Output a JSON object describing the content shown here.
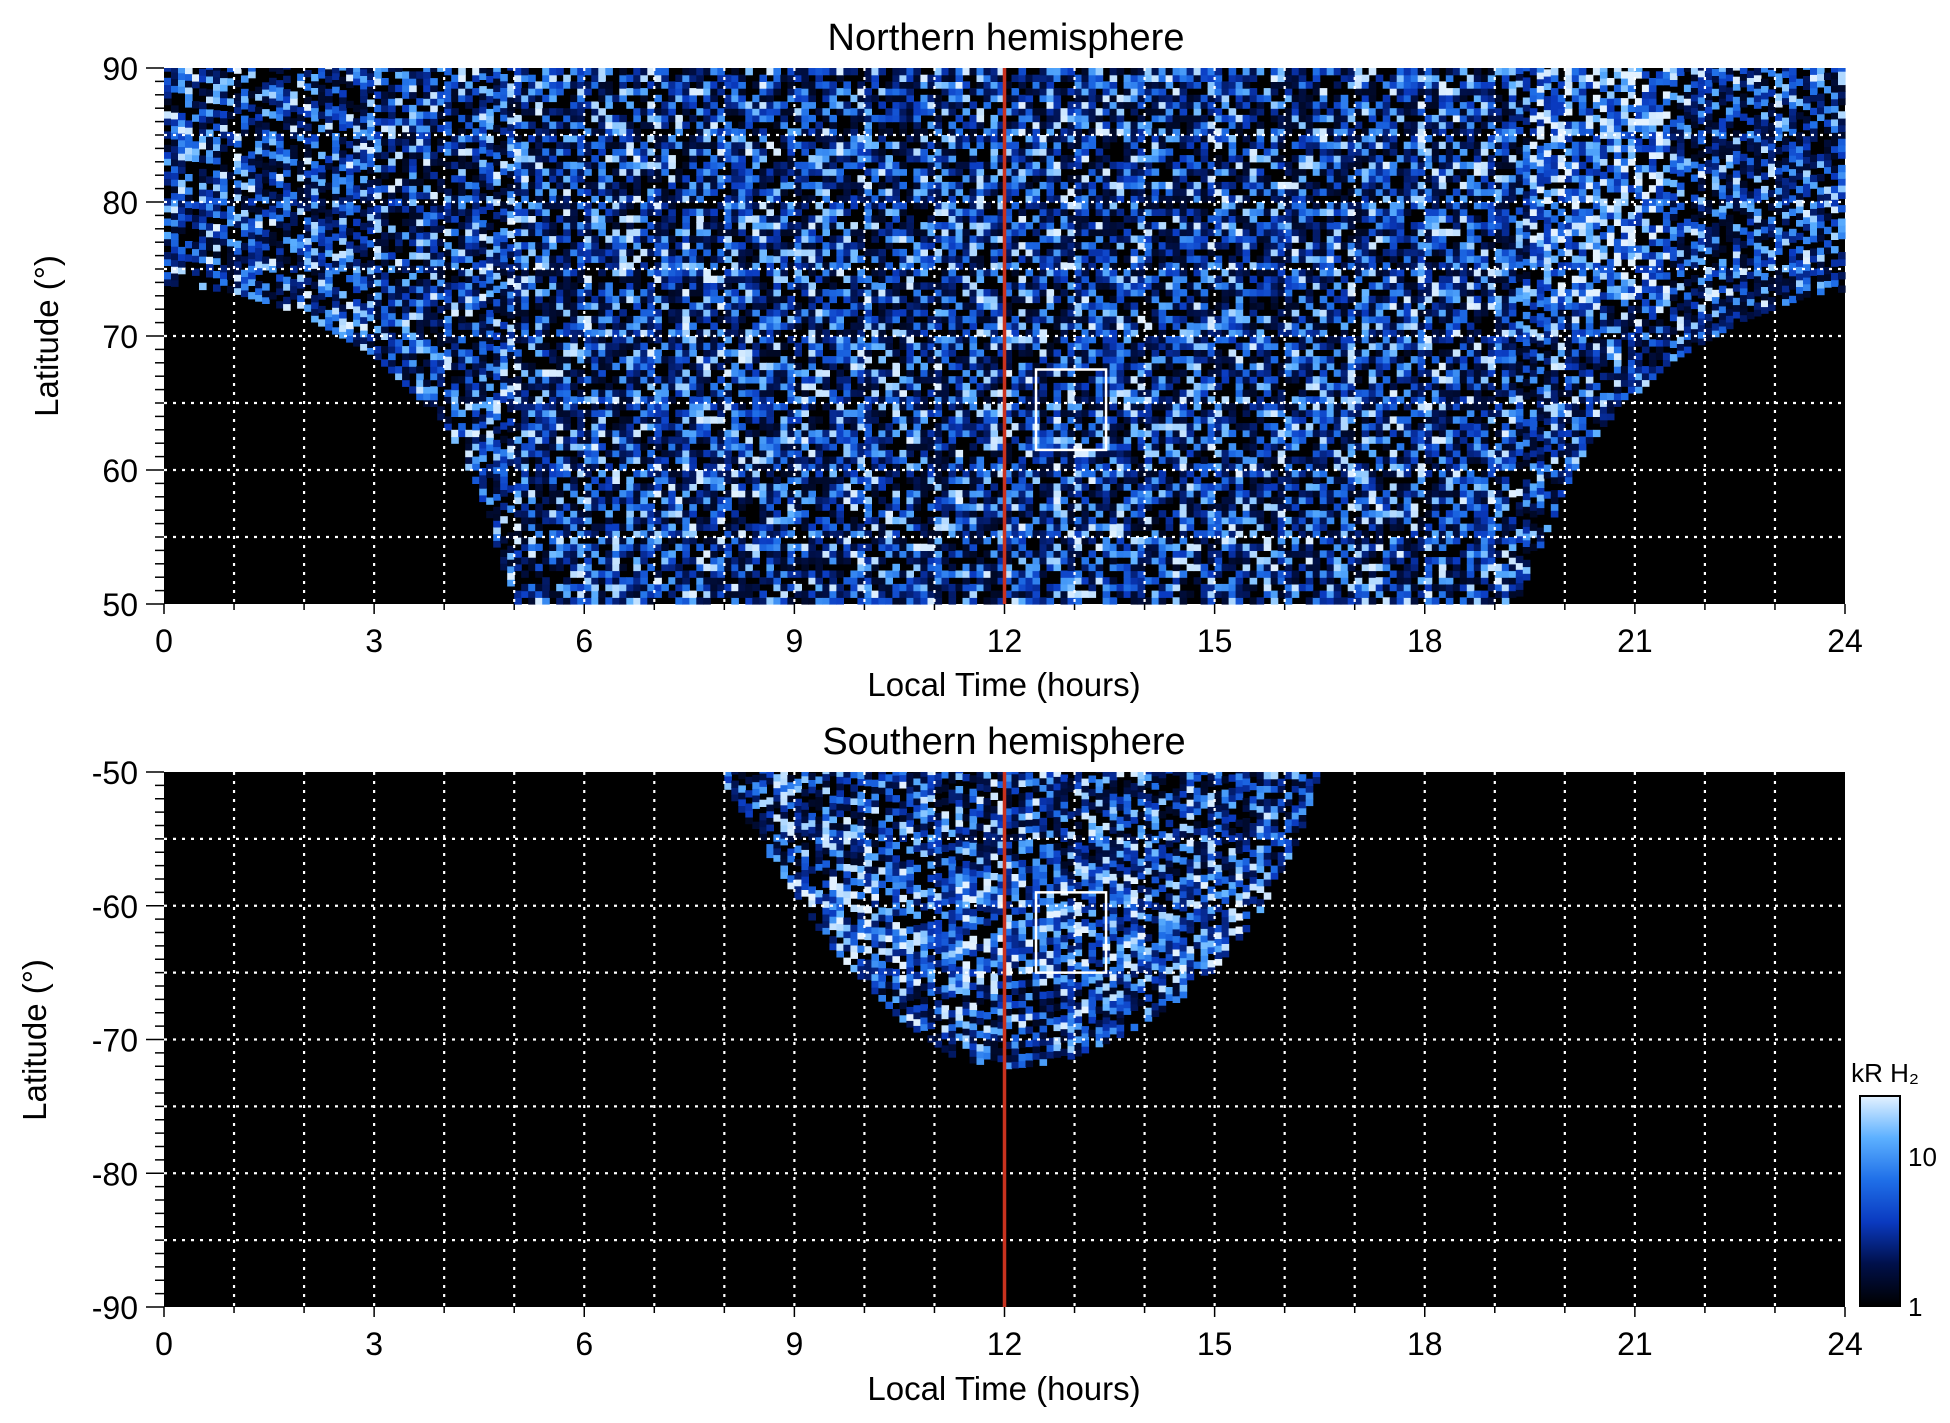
{
  "chart_data": [
    {
      "type": "heatmap",
      "title": "Northern hemisphere",
      "xlabel": "Local Time (hours)",
      "ylabel": "Latitude (°)",
      "xlim": [
        0,
        24
      ],
      "ylim": [
        50,
        90
      ],
      "x_ticks": [
        "0",
        "3",
        "6",
        "9",
        "12",
        "15",
        "18",
        "21",
        "24"
      ],
      "y_ticks": [
        "50",
        "60",
        "70",
        "80",
        "90"
      ],
      "grid": true,
      "x_grid_step": 1,
      "y_grid_step": 5,
      "noon_line_x": 12,
      "noon_line_color": "#c8321e",
      "box": {
        "x": [
          12.45,
          13.45
        ],
        "y": [
          61.5,
          67.5
        ]
      },
      "coverage_boundary": [
        [
          0,
          73.8
        ],
        [
          1,
          73.2
        ],
        [
          2,
          71.5
        ],
        [
          3,
          68.5
        ],
        [
          4,
          63.5
        ],
        [
          4.5,
          58.5
        ],
        [
          5,
          50
        ],
        [
          19.3,
          50
        ],
        [
          19.8,
          56
        ],
        [
          20.5,
          63
        ],
        [
          21.5,
          68
        ],
        [
          22.5,
          71
        ],
        [
          23.5,
          73
        ],
        [
          24,
          73.3
        ]
      ]
    },
    {
      "type": "heatmap",
      "title": "Southern hemisphere",
      "xlabel": "Local Time (hours)",
      "ylabel": "Latitude (°)",
      "xlim": [
        0,
        24
      ],
      "ylim": [
        -90,
        -50
      ],
      "x_ticks": [
        "0",
        "3",
        "6",
        "9",
        "12",
        "15",
        "18",
        "21",
        "24"
      ],
      "y_ticks": [
        "-50",
        "-60",
        "-70",
        "-80",
        "-90"
      ],
      "grid": true,
      "x_grid_step": 1,
      "y_grid_step": 5,
      "noon_line_x": 12,
      "noon_line_color": "#c8321e",
      "box": {
        "x": [
          12.45,
          13.45
        ],
        "y": [
          -65,
          -59
        ]
      },
      "coverage_boundary": [
        [
          7.9,
          -50
        ],
        [
          8.6,
          -56
        ],
        [
          9.5,
          -63
        ],
        [
          10.5,
          -68.5
        ],
        [
          11.3,
          -71.5
        ],
        [
          12,
          -72.2
        ],
        [
          12.8,
          -71.8
        ],
        [
          13.8,
          -69.5
        ],
        [
          14.8,
          -66
        ],
        [
          15.6,
          -61
        ],
        [
          16.2,
          -55
        ],
        [
          16.5,
          -50
        ]
      ]
    }
  ],
  "colorbar": {
    "label": "kR H₂",
    "ticks": [
      "1",
      "10"
    ],
    "scale": "log",
    "range": [
      1,
      25
    ],
    "colors": [
      "#000000",
      "#00104a",
      "#0a3ac0",
      "#1f6fe8",
      "#5cb0ff",
      "#e4f2ff"
    ]
  }
}
